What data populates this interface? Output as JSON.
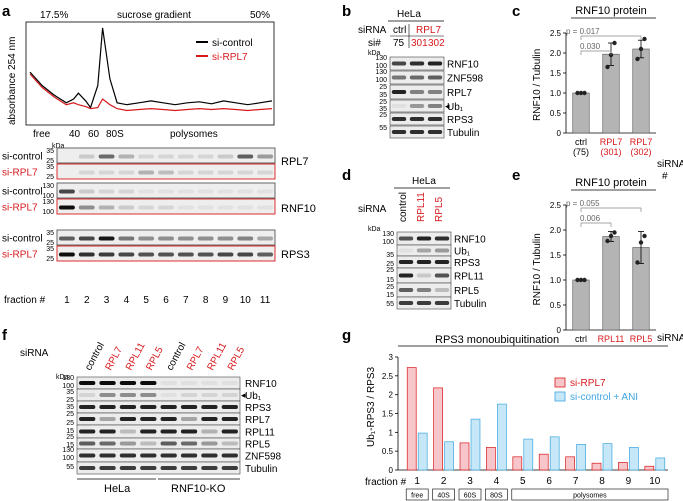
{
  "panels": {
    "a": "a",
    "b": "b",
    "c": "c",
    "d": "d",
    "e": "e",
    "f": "f",
    "g": "g"
  },
  "a": {
    "grad_low": "17.5%",
    "grad_label": "sucrose gradient",
    "grad_high": "50%",
    "ylabel": "absorbance 254 nm",
    "legend": [
      "si-control",
      "si-RPL7"
    ],
    "xticks": [
      "free",
      "40",
      "60",
      "80S",
      "polysomes"
    ],
    "kda": "kDa",
    "rows": [
      {
        "label": "si-control",
        "red": false,
        "mw": [
          "35",
          "25"
        ]
      },
      {
        "label": "si-RPL7",
        "red": true,
        "mw": [
          "35",
          "25"
        ]
      },
      {
        "label": "si-control",
        "red": false,
        "mw": [
          "130",
          "100"
        ]
      },
      {
        "label": "si-RPL7",
        "red": true,
        "mw": [
          "130",
          "100"
        ]
      },
      {
        "label": "si-control",
        "red": false,
        "mw": [
          "35",
          "25"
        ]
      },
      {
        "label": "si-RPL7",
        "red": true,
        "mw": [
          "35",
          "25"
        ]
      }
    ],
    "proteins": [
      "RPL7",
      "RNF10",
      "RPS3"
    ],
    "fraction_label": "fraction #",
    "fractions": [
      "1",
      "2",
      "3",
      "4",
      "5",
      "6",
      "7",
      "8",
      "9",
      "10",
      "11"
    ]
  },
  "b": {
    "cell": "HeLa",
    "sirna_label": "siRNA",
    "si_label": "si#",
    "ctrl": "ctrl",
    "target": "RPL7",
    "numbers": [
      "75",
      "301",
      "302"
    ],
    "kda": "kDa",
    "mw": [
      "130",
      "100",
      "130",
      "100",
      "25",
      "35",
      "25",
      "35",
      "25",
      "55"
    ],
    "labels": [
      "RNF10",
      "ZNF598",
      "RPL7",
      "Ub₁",
      "RPS3",
      "Tubulin"
    ]
  },
  "c": {
    "title": "RNF10 protein",
    "ylabel": "RNF10 / Tubulin",
    "yticks": [
      "0",
      "0.5",
      "1.0",
      "1.5",
      "2.0",
      "2.5"
    ],
    "p_values": [
      "p = 0.017",
      "0.030"
    ],
    "sirna_label": "siRNA",
    "hash": "#"
  },
  "d": {
    "cell": "HeLa",
    "sirna_label": "siRNA",
    "lanes": [
      "control",
      "RPL11",
      "RPL5"
    ],
    "kda": "kDa",
    "mw": [
      "130",
      "100",
      "35",
      "25",
      "25",
      "15",
      "25",
      "15",
      "55"
    ],
    "labels": [
      "RNF10",
      "Ub₁",
      "RPS3",
      "RPL11",
      "RPL5",
      "Tubulin"
    ]
  },
  "e": {
    "title": "RNF10 protein",
    "ylabel": "RNF10 / Tubulin",
    "yticks": [
      "0",
      "0.5",
      "1.0",
      "1.5",
      "2.0",
      "2.5"
    ],
    "p_values": [
      "p = 0.055",
      "0.006"
    ],
    "sirna_label": "siRNA"
  },
  "f": {
    "sirna_label": "siRNA",
    "lanes": [
      "control",
      "RPL7",
      "RPL11",
      "RPL5",
      "control",
      "RPL7",
      "RPL11",
      "RPL5"
    ],
    "kda": "kDa",
    "mw": [
      "130",
      "100",
      "35",
      "25",
      "35",
      "25",
      "25",
      "15",
      "25",
      "15",
      "130",
      "100",
      "55"
    ],
    "labels": [
      "RNF10",
      "Ub₁",
      "RPS3",
      "RPL7",
      "RPL11",
      "RPL5",
      "ZNF598",
      "Tubulin"
    ],
    "groups": [
      "HeLa",
      "RNF10-KO"
    ]
  },
  "g": {
    "title": "RPS3 monoubiquitination",
    "ylabel": "Ub₁-RPS3 / RPS3",
    "yticks": [
      "0",
      "0.5",
      "1",
      "1.5",
      "2",
      "2.5",
      "3"
    ],
    "fraction_label": "fraction #",
    "regions": [
      "free",
      "40S",
      "60S",
      "80S",
      "polysomes"
    ]
  },
  "colors": {
    "red": "#d7191c",
    "blue": "#3fa6e0",
    "pink": "#f7c6cb",
    "lightblue": "#c6e7f7",
    "bar": "#b4b4b4"
  },
  "chart_data": [
    {
      "type": "bar",
      "title": "RNF10 protein",
      "ylabel": "RNF10 / Tubulin",
      "categories": [
        "ctrl (75)",
        "RPL7 (301)",
        "RPL7 (302)"
      ],
      "values": [
        1.0,
        1.97,
        2.1
      ],
      "errors": [
        0.0,
        0.28,
        0.22
      ],
      "points": [
        [
          1.0,
          1.0,
          1.0
        ],
        [
          1.65,
          1.95,
          2.25
        ],
        [
          1.85,
          2.1,
          2.35
        ]
      ],
      "ylim": [
        0,
        2.5
      ]
    },
    {
      "type": "bar",
      "title": "RNF10 protein",
      "ylabel": "RNF10 / Tubulin",
      "categories": [
        "ctrl",
        "RPL11",
        "RPL5"
      ],
      "values": [
        1.0,
        1.87,
        1.65
      ],
      "errors": [
        0.0,
        0.1,
        0.32
      ],
      "points": [
        [
          1.0,
          1.0,
          1.0
        ],
        [
          1.78,
          1.88,
          1.95
        ],
        [
          1.35,
          1.75,
          1.88
        ]
      ],
      "ylim": [
        0,
        2.5
      ]
    },
    {
      "type": "bar",
      "title": "RPS3 monoubiquitination",
      "ylabel": "Ub₁-RPS3 / RPS3",
      "categories": [
        "1",
        "2",
        "3",
        "4",
        "5",
        "6",
        "7",
        "8",
        "9",
        "10"
      ],
      "series": [
        {
          "name": "si-RPL7",
          "values": [
            2.72,
            2.18,
            0.72,
            0.6,
            0.35,
            0.42,
            0.35,
            0.18,
            0.2,
            0.1
          ]
        },
        {
          "name": "si-control + ANI",
          "values": [
            0.98,
            0.75,
            1.35,
            1.75,
            0.82,
            0.88,
            0.68,
            0.7,
            0.6,
            0.32
          ]
        }
      ],
      "ylim": [
        0,
        3
      ]
    },
    {
      "type": "line",
      "title": "",
      "ylabel": "absorbance 254 nm",
      "xlabel": "sucrose gradient 17.5% to 50%",
      "series": [
        {
          "name": "si-control",
          "x": [
            0,
            5,
            10,
            15,
            18,
            20,
            23,
            25,
            28,
            30,
            33,
            36,
            40,
            45,
            50,
            55,
            60,
            65,
            70,
            75,
            80,
            85,
            90,
            95,
            100
          ],
          "y": [
            0.52,
            0.38,
            0.28,
            0.2,
            0.24,
            0.3,
            0.22,
            0.15,
            0.38,
            0.98,
            0.45,
            0.2,
            0.18,
            0.2,
            0.22,
            0.2,
            0.18,
            0.2,
            0.21,
            0.19,
            0.22,
            0.2,
            0.18,
            0.2,
            0.22
          ]
        },
        {
          "name": "si-RPL7",
          "x": [
            0,
            5,
            10,
            15,
            18,
            20,
            23,
            25,
            28,
            30,
            33,
            36,
            40,
            45,
            50,
            55,
            60,
            65,
            70,
            75,
            80,
            85,
            90,
            95,
            100
          ],
          "y": [
            0.5,
            0.36,
            0.26,
            0.18,
            0.2,
            0.18,
            0.16,
            0.14,
            0.15,
            0.24,
            0.18,
            0.14,
            0.12,
            0.13,
            0.14,
            0.13,
            0.12,
            0.13,
            0.14,
            0.13,
            0.14,
            0.13,
            0.12,
            0.13,
            0.14
          ]
        }
      ]
    }
  ]
}
